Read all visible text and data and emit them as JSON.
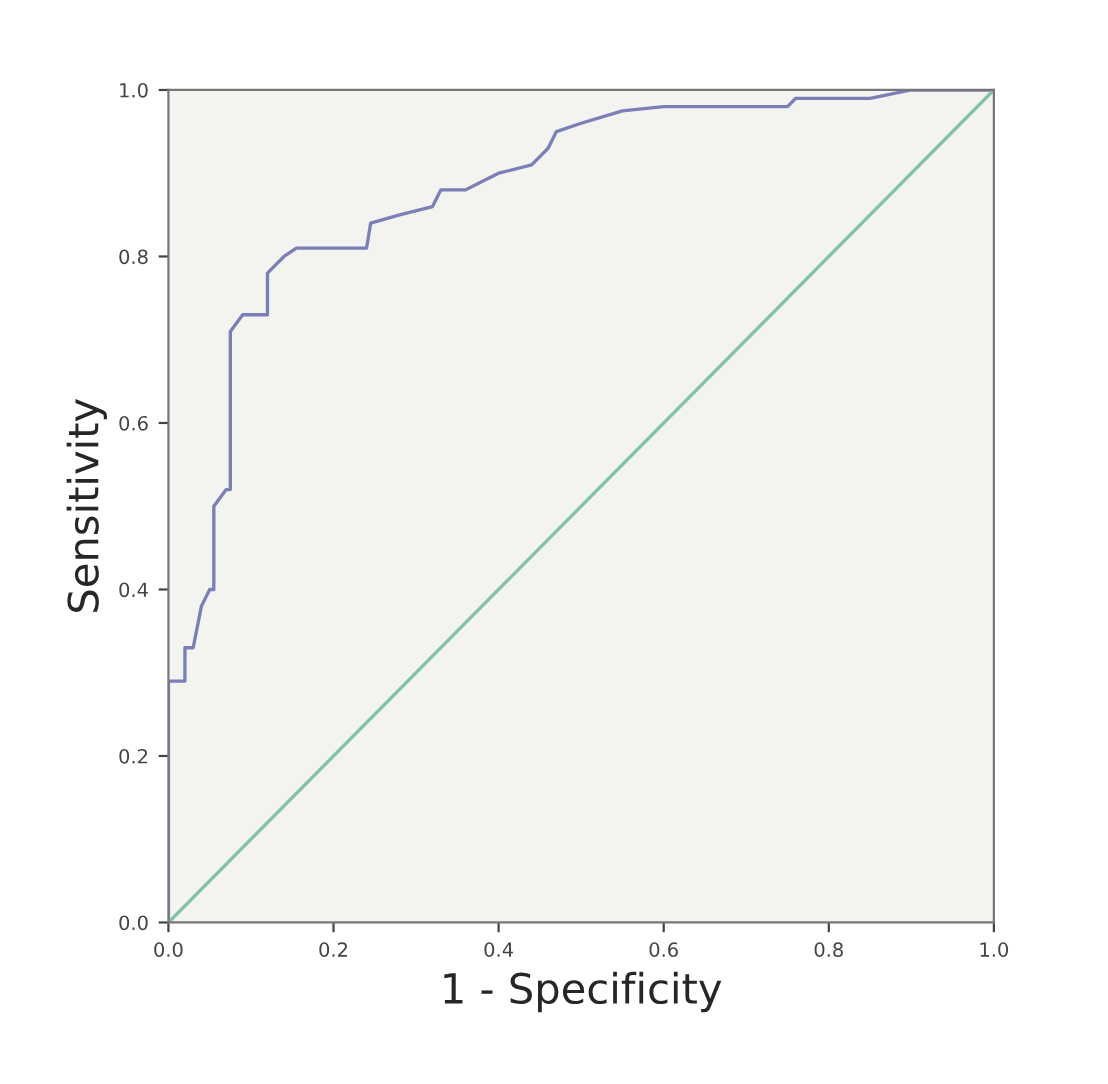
{
  "chart_data": {
    "type": "line",
    "xlabel": "1 - Specificity",
    "ylabel": "Sensitivity",
    "xlim": [
      0,
      1
    ],
    "ylim": [
      0,
      1
    ],
    "xticks": [
      {
        "value": 0,
        "label": "0.0"
      },
      {
        "value": 0.2,
        "label": "0.2"
      },
      {
        "value": 0.4,
        "label": "0.4"
      },
      {
        "value": 0.6,
        "label": "0.6"
      },
      {
        "value": 0.8,
        "label": "0.8"
      },
      {
        "value": 1,
        "label": "1.0"
      }
    ],
    "yticks": [
      {
        "value": 0,
        "label": "0.0"
      },
      {
        "value": 0.2,
        "label": "0.2"
      },
      {
        "value": 0.4,
        "label": "0.4"
      },
      {
        "value": 0.6,
        "label": "0.6"
      },
      {
        "value": 0.8,
        "label": "0.8"
      },
      {
        "value": 1,
        "label": "1.0"
      }
    ],
    "grid": false,
    "series": [
      {
        "color": "#7a7fb8",
        "x": [
          0,
          0,
          0.02,
          0.02,
          0.03,
          0.04,
          0.05,
          0.055,
          0.055,
          0.07,
          0.075,
          0.075,
          0.09,
          0.12,
          0.12,
          0.14,
          0.155,
          0.24,
          0.245,
          0.28,
          0.32,
          0.33,
          0.36,
          0.38,
          0.4,
          0.44,
          0.46,
          0.47,
          0.5,
          0.55,
          0.6,
          0.75,
          0.76,
          0.85,
          0.9,
          1.0
        ],
        "values": [
          0,
          0.29,
          0.29,
          0.33,
          0.33,
          0.38,
          0.4,
          0.4,
          0.5,
          0.52,
          0.52,
          0.71,
          0.73,
          0.73,
          0.78,
          0.8,
          0.81,
          0.81,
          0.84,
          0.85,
          0.86,
          0.88,
          0.88,
          0.89,
          0.9,
          0.91,
          0.93,
          0.95,
          0.96,
          0.975,
          0.98,
          0.98,
          0.99,
          0.99,
          1.0,
          1.0
        ]
      },
      {
        "color": "#7fc4a8",
        "x": [
          0,
          1
        ],
        "values": [
          0,
          1
        ]
      }
    ]
  }
}
